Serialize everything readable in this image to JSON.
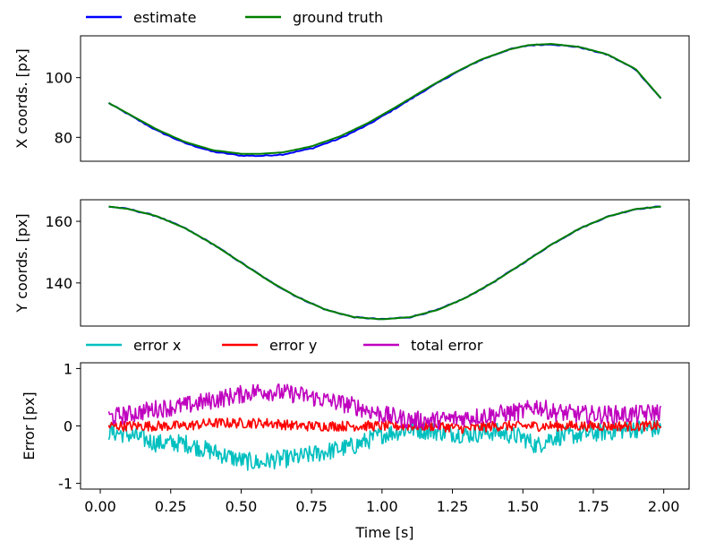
{
  "chart_data": [
    {
      "type": "line",
      "ylabel": "X coords. [px]",
      "xlim": [
        -0.07,
        2.09
      ],
      "ylim": [
        72,
        114
      ],
      "yticks": [
        80,
        100
      ],
      "show_x_ticklabels": false,
      "legend_placement": "top-left, above plot",
      "grid": false,
      "series": [
        {
          "name": "estimate",
          "color": "#0000ff",
          "x": [
            0.03,
            0.1,
            0.2,
            0.3,
            0.4,
            0.5,
            0.57,
            0.65,
            0.75,
            0.85,
            0.95,
            1.05,
            1.15,
            1.25,
            1.35,
            1.45,
            1.52,
            1.6,
            1.7,
            1.8,
            1.9,
            1.99
          ],
          "y": [
            91.5,
            87.7,
            82.3,
            78.1,
            75.2,
            73.9,
            73.8,
            74.3,
            76.3,
            79.6,
            84.2,
            89.8,
            95.6,
            101.1,
            105.9,
            109.4,
            110.8,
            111.2,
            110.2,
            107.7,
            102.8,
            93.0
          ]
        },
        {
          "name": "ground truth",
          "color": "#008000",
          "x": [
            0.03,
            0.1,
            0.2,
            0.3,
            0.4,
            0.5,
            0.57,
            0.65,
            0.75,
            0.85,
            0.95,
            1.05,
            1.15,
            1.25,
            1.35,
            1.45,
            1.52,
            1.6,
            1.7,
            1.8,
            1.9,
            1.99
          ],
          "y": [
            91.5,
            87.9,
            82.7,
            78.5,
            75.7,
            74.5,
            74.5,
            75.0,
            77.0,
            80.3,
            84.8,
            90.2,
            95.9,
            101.3,
            106.0,
            109.4,
            110.9,
            111.3,
            110.3,
            107.8,
            102.9,
            93.1
          ]
        }
      ]
    },
    {
      "type": "line",
      "ylabel": "Y coords. [px]",
      "xlim": [
        -0.07,
        2.09
      ],
      "ylim": [
        126,
        167
      ],
      "yticks": [
        140,
        160
      ],
      "show_x_ticklabels": false,
      "grid": false,
      "series": [
        {
          "name": "estimate",
          "color": "#0000ff",
          "x": [
            0.03,
            0.1,
            0.2,
            0.3,
            0.4,
            0.5,
            0.6,
            0.7,
            0.8,
            0.9,
            1.0,
            1.1,
            1.2,
            1.3,
            1.4,
            1.5,
            1.6,
            1.7,
            1.8,
            1.9,
            1.99
          ],
          "y": [
            164.8,
            164.0,
            161.7,
            157.8,
            152.6,
            146.6,
            140.6,
            135.4,
            131.3,
            128.9,
            128.2,
            128.9,
            131.3,
            135.3,
            140.5,
            146.4,
            152.4,
            157.6,
            161.5,
            164.0,
            164.8
          ]
        },
        {
          "name": "ground truth",
          "color": "#008000",
          "x": [
            0.03,
            0.1,
            0.2,
            0.3,
            0.4,
            0.5,
            0.6,
            0.7,
            0.8,
            0.9,
            1.0,
            1.1,
            1.2,
            1.3,
            1.4,
            1.5,
            1.6,
            1.7,
            1.8,
            1.9,
            1.99
          ],
          "y": [
            164.8,
            164.0,
            161.7,
            157.8,
            152.6,
            146.6,
            140.6,
            135.4,
            131.3,
            128.9,
            128.2,
            128.9,
            131.3,
            135.3,
            140.5,
            146.4,
            152.4,
            157.6,
            161.5,
            164.0,
            164.8
          ]
        }
      ]
    },
    {
      "type": "line",
      "ylabel": "Error [px]",
      "xlabel": "Time [s]",
      "xlim": [
        -0.07,
        2.09
      ],
      "ylim": [
        -1.1,
        1.1
      ],
      "yticks": [
        -1,
        0,
        1
      ],
      "xticks": [
        0.0,
        0.25,
        0.5,
        0.75,
        1.0,
        1.25,
        1.5,
        1.75,
        2.0
      ],
      "xticklabels": [
        "0.00",
        "0.25",
        "0.50",
        "0.75",
        "1.00",
        "1.25",
        "1.50",
        "1.75",
        "2.00"
      ],
      "legend_placement": "top-left, above plot",
      "grid": false,
      "series": [
        {
          "name": "error x",
          "color": "#00bfbf",
          "x": [
            0.03,
            0.1,
            0.2,
            0.3,
            0.4,
            0.5,
            0.57,
            0.6,
            0.7,
            0.8,
            0.9,
            1.0,
            1.1,
            1.2,
            1.3,
            1.4,
            1.5,
            1.55,
            1.6,
            1.7,
            1.8,
            1.9,
            1.99
          ],
          "y": [
            -0.1,
            -0.15,
            -0.3,
            -0.3,
            -0.45,
            -0.6,
            -0.65,
            -0.6,
            -0.55,
            -0.45,
            -0.35,
            -0.15,
            -0.05,
            -0.1,
            -0.15,
            -0.1,
            -0.2,
            -0.35,
            -0.2,
            -0.15,
            -0.1,
            -0.05,
            -0.05
          ]
        },
        {
          "name": "error y",
          "color": "#ff0000",
          "x": [
            0.03,
            0.1,
            0.2,
            0.3,
            0.4,
            0.5,
            0.57,
            0.6,
            0.7,
            0.8,
            0.9,
            1.0,
            1.1,
            1.2,
            1.3,
            1.4,
            1.5,
            1.55,
            1.6,
            1.7,
            1.8,
            1.9,
            1.99
          ],
          "y": [
            0.0,
            0.0,
            0.0,
            0.0,
            0.05,
            0.05,
            0.05,
            0.05,
            0.0,
            0.0,
            0.0,
            0.0,
            0.0,
            0.0,
            -0.05,
            0.0,
            0.0,
            0.0,
            0.0,
            0.0,
            0.0,
            0.0,
            0.0
          ]
        },
        {
          "name": "total error",
          "color": "#bf00bf",
          "x": [
            0.03,
            0.1,
            0.2,
            0.3,
            0.4,
            0.5,
            0.57,
            0.6,
            0.7,
            0.8,
            0.9,
            1.0,
            1.1,
            1.2,
            1.3,
            1.4,
            1.5,
            1.55,
            1.6,
            1.7,
            1.8,
            1.9,
            1.99
          ],
          "y": [
            0.15,
            0.2,
            0.3,
            0.35,
            0.45,
            0.55,
            0.62,
            0.6,
            0.55,
            0.45,
            0.35,
            0.2,
            0.1,
            0.1,
            0.15,
            0.2,
            0.25,
            0.35,
            0.25,
            0.2,
            0.2,
            0.2,
            0.25
          ]
        }
      ]
    }
  ]
}
